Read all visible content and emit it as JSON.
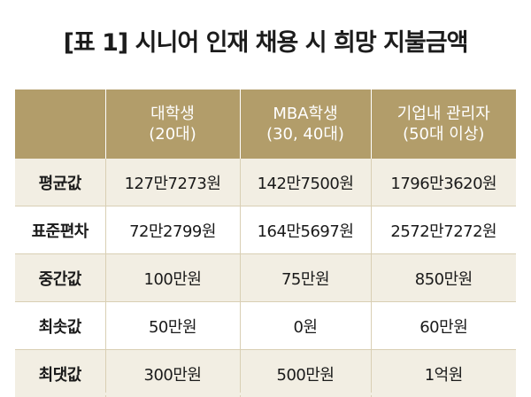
{
  "title": "[표 1] 시니어 인재 채용 시 희망 지불금액",
  "columns": [
    {
      "line1": "대학생",
      "line2": "(20대)"
    },
    {
      "line1": "MBA학생",
      "line2": "(30, 40대)"
    },
    {
      "line1": "기업내 관리자",
      "line2": "(50대 이상)"
    }
  ],
  "rows": [
    {
      "label": "평균값",
      "values": [
        "127만7273원",
        "142만7500원",
        "1796만3620원"
      ]
    },
    {
      "label": "표준편차",
      "values": [
        "72만2799원",
        "164만5697원",
        "2572만7272원"
      ]
    },
    {
      "label": "중간값",
      "values": [
        "100만원",
        "75만원",
        "850만원"
      ]
    },
    {
      "label": "최솟값",
      "values": [
        "50만원",
        "0원",
        "60만원"
      ]
    },
    {
      "label": "최댓값",
      "values": [
        "300만원",
        "500만원",
        "1억원"
      ]
    }
  ],
  "colors": {
    "header_bg": "#b29d6a",
    "header_text": "#ffffff",
    "row_alt_bg": "#f2eee3"
  }
}
